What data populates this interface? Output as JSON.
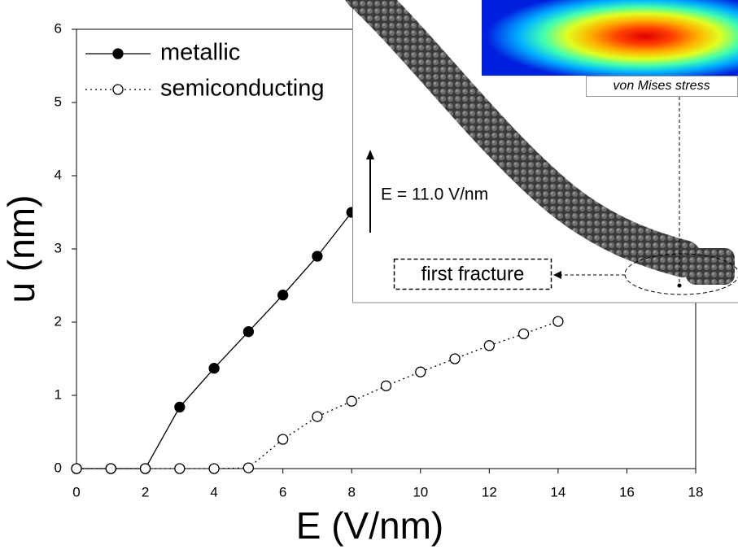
{
  "chart_data": {
    "type": "line",
    "xlabel": "E (V/nm)",
    "ylabel": "u (nm)",
    "x": [
      0,
      1,
      2,
      3,
      4,
      5,
      6,
      7,
      8,
      9,
      10,
      11,
      12,
      13,
      14
    ],
    "series": [
      {
        "name": "metallic",
        "color": "#000000",
        "marker": "filled",
        "dash": "solid",
        "values": [
          0,
          0,
          0,
          0.84,
          1.37,
          1.87,
          2.37,
          2.9,
          3.5,
          null,
          null,
          null,
          null,
          null,
          null
        ]
      },
      {
        "name": "semiconducting",
        "color": "#000000",
        "marker": "open",
        "dash": "dotted",
        "values": [
          0,
          0,
          0,
          0,
          0,
          0.01,
          0.4,
          0.71,
          0.92,
          1.13,
          1.32,
          1.5,
          1.68,
          1.84,
          2.01
        ]
      }
    ],
    "xlim": [
      0,
      18
    ],
    "ylim": [
      0,
      6
    ],
    "xticks": [
      0,
      2,
      4,
      6,
      8,
      10,
      12,
      14,
      16,
      18
    ],
    "yticks": [
      0,
      1,
      2,
      3,
      4,
      5,
      6
    ],
    "legend": "upper left"
  },
  "inset": {
    "stress_label": "von Mises stress",
    "field_label": "E = 11.0 V/nm",
    "fracture_label": "first fracture"
  }
}
